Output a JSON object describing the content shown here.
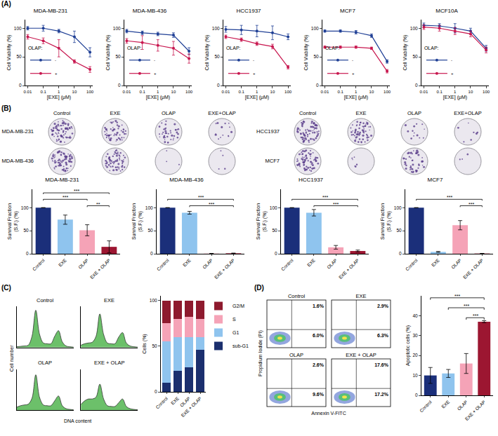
{
  "panel_letters": [
    "(A)",
    "(B)",
    "(C)",
    "(D)"
  ],
  "colony_images": {
    "columns": [
      "Control",
      "EXE",
      "OLAP",
      "EXE+OLAP"
    ],
    "groups": [
      [
        "MDA-MB-231",
        "MDA-MB-436"
      ],
      [
        "HCC1937",
        "MCF7"
      ]
    ]
  },
  "annexin_plots": {
    "x_label": "Annexin V-FITC",
    "y_label": "Propidium Iodide (PI)",
    "panels": [
      {
        "title": "Control",
        "upper_right": "1.6%",
        "lower_right": "6.0%"
      },
      {
        "title": "EXE",
        "upper_right": "2.9%",
        "lower_right": "6.3%"
      },
      {
        "title": "OLAP",
        "upper_right": "2.6%",
        "lower_right": "9.6%"
      },
      {
        "title": "EXE + OLAP",
        "upper_right": "17.6%",
        "lower_right": "17.2%"
      }
    ]
  },
  "chart_data": [
    {
      "type": "line",
      "title": "MDA-MB-231",
      "x_label": "[EXE] (μM)",
      "y_label": "Cell Viability (%)",
      "log": "x",
      "grid": false,
      "x": [
        0.01,
        0.1,
        1,
        10,
        100
      ],
      "xlim": [
        0.007,
        150
      ],
      "xticks": [
        0.01,
        0.1,
        1,
        10,
        100
      ],
      "ylim": [
        0,
        115
      ],
      "yticks": [
        0,
        50,
        100
      ],
      "legend_title": "OLAP:",
      "legend": "lower left",
      "series": [
        {
          "name": "-",
          "color": "#1f3f95",
          "marker": "circle",
          "values": [
            100,
            100,
            95,
            85,
            58
          ],
          "errors": [
            3,
            5,
            3,
            10,
            8
          ]
        },
        {
          "name": "+",
          "color": "#c8174f",
          "marker": "circle",
          "values": [
            85,
            78,
            65,
            42,
            28
          ],
          "errors": [
            4,
            5,
            15,
            3,
            5
          ]
        }
      ]
    },
    {
      "type": "line",
      "title": "MDA-MB-436",
      "x_label": "[EXE] (μM)",
      "y_label": "Cell Viability (%)",
      "log": "x",
      "grid": false,
      "x": [
        0.01,
        0.1,
        1,
        10,
        100
      ],
      "xlim": [
        0.007,
        150
      ],
      "xticks": [
        0.01,
        0.1,
        1,
        10,
        100
      ],
      "ylim": [
        0,
        115
      ],
      "yticks": [
        0,
        50,
        100
      ],
      "legend_title": "OLAP:",
      "legend": "lower left",
      "series": [
        {
          "name": "-",
          "color": "#1f3f95",
          "marker": "circle",
          "values": [
            95,
            92,
            90,
            88,
            60
          ],
          "errors": [
            3,
            3,
            3,
            4,
            6
          ]
        },
        {
          "name": "+",
          "color": "#c8174f",
          "marker": "circle",
          "values": [
            78,
            75,
            70,
            65,
            47
          ],
          "errors": [
            4,
            12,
            10,
            12,
            8
          ]
        }
      ]
    },
    {
      "type": "line",
      "title": "HCC1937",
      "x_label": "[EXE] (μM)",
      "y_label": "Cell Viability (%)",
      "log": "x",
      "grid": false,
      "x": [
        0.01,
        0.1,
        1,
        10,
        100
      ],
      "xlim": [
        0.007,
        150
      ],
      "xticks": [
        0.01,
        0.1,
        1,
        10,
        100
      ],
      "ylim": [
        0,
        115
      ],
      "yticks": [
        0,
        50,
        100
      ],
      "legend_title": "OLAP:",
      "legend": "lower left",
      "series": [
        {
          "name": "-",
          "color": "#1f3f95",
          "marker": "circle",
          "values": [
            98,
            97,
            95,
            92,
            85
          ],
          "errors": [
            5,
            8,
            10,
            12,
            5
          ]
        },
        {
          "name": "+",
          "color": "#c8174f",
          "marker": "circle",
          "values": [
            85,
            80,
            73,
            68,
            32
          ],
          "errors": [
            3,
            3,
            3,
            4,
            3
          ]
        }
      ]
    },
    {
      "type": "line",
      "title": "MCF7",
      "x_label": "[EXE] (μM)",
      "y_label": "Cell Viability (%)",
      "log": "x",
      "grid": false,
      "x": [
        0.01,
        0.1,
        1,
        10,
        100
      ],
      "xlim": [
        0.007,
        150
      ],
      "xticks": [
        0.01,
        0.1,
        1,
        10,
        100
      ],
      "ylim": [
        0,
        115
      ],
      "yticks": [
        0,
        50,
        100
      ],
      "legend_title": "OLAP:",
      "legend": "lower left",
      "series": [
        {
          "name": "-",
          "color": "#1f3f95",
          "marker": "circle",
          "values": [
            95,
            95,
            93,
            87,
            42
          ],
          "errors": [
            2,
            2,
            3,
            3,
            3
          ]
        },
        {
          "name": "+",
          "color": "#c8174f",
          "marker": "circle",
          "values": [
            67,
            67,
            67,
            65,
            25
          ],
          "errors": [
            2,
            2,
            2,
            2,
            3
          ]
        }
      ]
    },
    {
      "type": "line",
      "title": "MCF10A",
      "x_label": "[EXE] (μM)",
      "y_label": "Cell Viability (%)",
      "log": "x",
      "grid": false,
      "x": [
        0.01,
        0.1,
        1,
        10,
        100
      ],
      "xlim": [
        0.007,
        150
      ],
      "xticks": [
        0.01,
        0.1,
        1,
        10,
        100
      ],
      "ylim": [
        0,
        115
      ],
      "yticks": [
        0,
        50,
        100
      ],
      "legend_title": "OLAP:",
      "legend": "lower left",
      "series": [
        {
          "name": "-",
          "color": "#1f3f95",
          "marker": "circle",
          "values": [
            105,
            104,
            100,
            95,
            65
          ],
          "errors": [
            4,
            4,
            8,
            5,
            5
          ]
        },
        {
          "name": "+",
          "color": "#c8174f",
          "marker": "circle",
          "values": [
            102,
            100,
            95,
            90,
            62
          ],
          "errors": [
            4,
            5,
            6,
            5,
            5
          ]
        }
      ]
    },
    {
      "type": "bar",
      "title": "MDA-MB-231",
      "y_label": "Survival Fraction (S.F.) (%)",
      "grid": false,
      "categories": [
        "Control",
        "EXE",
        "OLAP",
        "EXE + OLAP"
      ],
      "values": [
        100,
        74,
        51,
        15
      ],
      "errors": [
        0,
        10,
        12,
        13
      ],
      "colors": [
        "#1b2f7a",
        "#8fc4ee",
        "#f5a3b7",
        "#9c1631"
      ],
      "ylim": [
        0,
        140
      ],
      "yticks": [
        0,
        50,
        100
      ],
      "annotations": [
        {
          "text": "***",
          "from": "Control",
          "to": "EXE + OLAP"
        },
        {
          "text": "***",
          "from": "Control",
          "to": "OLAP"
        },
        {
          "text": "**",
          "from": "OLAP",
          "to": "EXE + OLAP"
        }
      ]
    },
    {
      "type": "bar",
      "title": "MDA-MB-436",
      "y_label": "Survival Fraction (S.F.) (%)",
      "grid": false,
      "categories": [
        "Control",
        "EXE",
        "OLAP",
        "EXE + OLAP"
      ],
      "values": [
        100,
        89,
        0.5,
        1
      ],
      "errors": [
        0,
        3,
        0.3,
        0.5
      ],
      "colors": [
        "#1b2f7a",
        "#8fc4ee",
        "#f5a3b7",
        "#9c1631"
      ],
      "ylim": [
        0,
        140
      ],
      "yticks": [
        0,
        50,
        100
      ],
      "annotations": [
        {
          "text": "***",
          "from": "Control",
          "to": "EXE + OLAP"
        },
        {
          "text": "***",
          "from": "EXE",
          "to": "EXE + OLAP"
        }
      ]
    },
    {
      "type": "bar",
      "title": "HCC1937",
      "y_label": "Survival Fraction (S.F.) (%)",
      "grid": false,
      "categories": [
        "Control",
        "EXE",
        "OLAP",
        "EXE + OLAP"
      ],
      "values": [
        100,
        89,
        14,
        6
      ],
      "errors": [
        0,
        7,
        4,
        2
      ],
      "colors": [
        "#1b2f7a",
        "#8fc4ee",
        "#f5a3b7",
        "#9c1631"
      ],
      "ylim": [
        0,
        140
      ],
      "yticks": [
        0,
        50,
        100
      ],
      "annotations": [
        {
          "text": "***",
          "from": "Control",
          "to": "EXE + OLAP"
        },
        {
          "text": "***",
          "from": "EXE",
          "to": "EXE + OLAP"
        }
      ]
    },
    {
      "type": "bar",
      "title": "MCF7",
      "y_label": "Survival Fraction (S.F.) (%)",
      "grid": false,
      "categories": [
        "Control",
        "EXE",
        "OLAP",
        "EXE + OLAP"
      ],
      "values": [
        100,
        4,
        62,
        0.5
      ],
      "errors": [
        0,
        1,
        10,
        0.3
      ],
      "colors": [
        "#1b2f7a",
        "#8fc4ee",
        "#f5a3b7",
        "#9c1631"
      ],
      "ylim": [
        0,
        140
      ],
      "yticks": [
        0,
        50,
        100
      ],
      "annotations": [
        {
          "text": "***",
          "from": "Control",
          "to": "EXE + OLAP"
        },
        {
          "text": "***",
          "from": "OLAP",
          "to": "EXE + OLAP"
        }
      ]
    },
    {
      "type": "area",
      "x_label": "DNA content",
      "y_label": "Cell number",
      "tick_labels": false,
      "color": "#6cc06a",
      "x": [
        0,
        1,
        2,
        3,
        4,
        5,
        6,
        7,
        8,
        9,
        10,
        11,
        12,
        13,
        14,
        15
      ],
      "xlim": [
        0,
        15
      ],
      "ylim": [
        0,
        110
      ],
      "panels": [
        {
          "title": "Control",
          "values": [
            2,
            3,
            4,
            6,
            30,
            100,
            35,
            12,
            10,
            10,
            30,
            45,
            15,
            4,
            2,
            1
          ]
        },
        {
          "title": "EXE",
          "values": [
            6,
            10,
            12,
            14,
            30,
            90,
            35,
            12,
            10,
            10,
            28,
            40,
            12,
            4,
            2,
            1
          ]
        },
        {
          "title": "OLAP",
          "values": [
            8,
            12,
            14,
            16,
            32,
            95,
            34,
            14,
            12,
            12,
            25,
            38,
            12,
            4,
            2,
            1
          ]
        },
        {
          "title": "EXE + OLAP",
          "values": [
            15,
            25,
            30,
            30,
            35,
            70,
            30,
            12,
            10,
            10,
            20,
            30,
            10,
            4,
            2,
            1
          ]
        }
      ]
    },
    {
      "type": "bar",
      "stacked": true,
      "y_label": "Cells (%)",
      "grid": false,
      "legend": "right",
      "categories": [
        "Control",
        "EXE",
        "OLAP",
        "EXE + OLAP"
      ],
      "ylim": [
        0,
        105
      ],
      "yticks": [
        0,
        50,
        100
      ],
      "series": [
        {
          "name": "G2/M",
          "color": "#8e1a2e",
          "values": [
            25,
            20,
            18,
            20
          ]
        },
        {
          "name": "S",
          "color": "#f5a3b7",
          "values": [
            20,
            20,
            22,
            20
          ]
        },
        {
          "name": "G1",
          "color": "#8fc4ee",
          "values": [
            45,
            37,
            33,
            14
          ]
        },
        {
          "name": "sub-G1",
          "color": "#1b2f6e",
          "values": [
            10,
            23,
            27,
            46
          ]
        }
      ]
    },
    {
      "type": "bar",
      "y_label": "Apoptotic cells (%)",
      "grid": false,
      "categories": [
        "Control",
        "EXE",
        "OLAP",
        "EXE + OLAP"
      ],
      "values": [
        10,
        11,
        16,
        37
      ],
      "errors": [
        4,
        2,
        5,
        0.5
      ],
      "colors": [
        "#1b2f7a",
        "#8fc4ee",
        "#f5a3b7",
        "#9c1631"
      ],
      "ylim": [
        0,
        50
      ],
      "yticks": [
        0,
        10,
        20,
        30,
        40
      ],
      "annotations": [
        {
          "text": "***",
          "from": "Control",
          "to": "EXE + OLAP"
        },
        {
          "text": "***",
          "from": "EXE",
          "to": "EXE + OLAP"
        },
        {
          "text": "***",
          "from": "OLAP",
          "to": "EXE + OLAP"
        }
      ]
    }
  ]
}
